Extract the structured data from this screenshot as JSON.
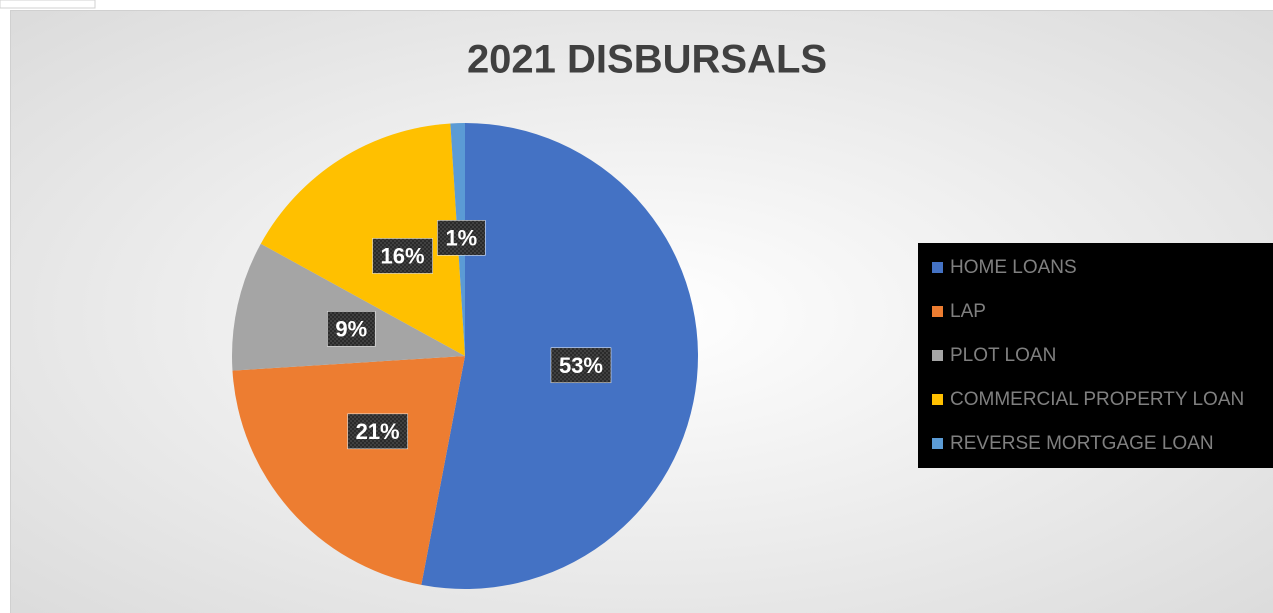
{
  "chart_data": {
    "type": "pie",
    "title": "2021 DISBURSALS",
    "categories": [
      "HOME LOANS",
      "LAP",
      "PLOT LOAN",
      "COMMERCIAL PROPERTY LOAN",
      "REVERSE MORTGAGE LOAN"
    ],
    "values": [
      53,
      21,
      9,
      16,
      1
    ],
    "value_labels": [
      "53%",
      "21%",
      "9%",
      "16%",
      "1%"
    ],
    "colors": [
      "#4472c4",
      "#ed7d31",
      "#a5a5a5",
      "#ffc000",
      "#5b9bd5"
    ],
    "legend": "right"
  }
}
